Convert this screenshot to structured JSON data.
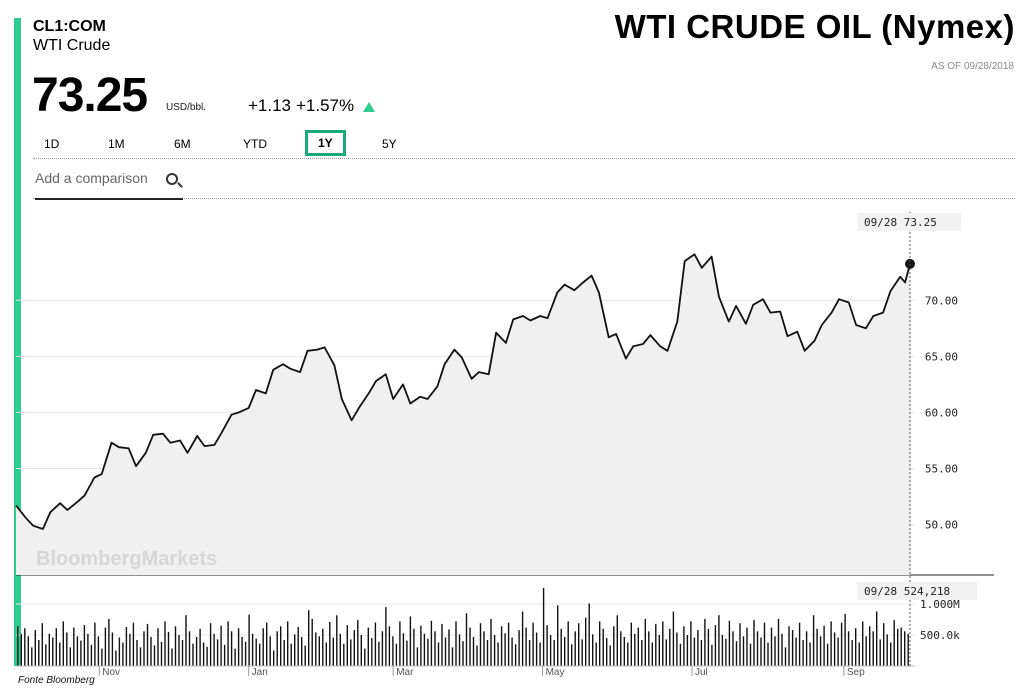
{
  "header": {
    "ticker": "CL1:COM",
    "name": "WTI Crude",
    "title": "WTI CRUDE OIL (Nymex)",
    "as_of": "AS OF 09/28/2018",
    "price": "73.25",
    "unit": "USD/bbl.",
    "change": "+1.13",
    "change_pct": "+1.57%"
  },
  "ranges": [
    {
      "label": "1D",
      "active": false
    },
    {
      "label": "1M",
      "active": false
    },
    {
      "label": "6M",
      "active": false
    },
    {
      "label": "YTD",
      "active": false
    },
    {
      "label": "1Y",
      "active": true
    },
    {
      "label": "5Y",
      "active": false
    }
  ],
  "compare": {
    "placeholder": "Add a comparison"
  },
  "watermark": "BloombergMarkets",
  "source": "Fonte Bloomberg",
  "colors": {
    "accent": "#2ecc8f",
    "active_border": "#1aa97b"
  },
  "chart_data": {
    "type": "line",
    "price_axis": {
      "ticks": [
        "70.00",
        "65.00",
        "60.00",
        "55.00",
        "50.00"
      ],
      "tick_values": [
        70,
        65,
        60,
        55,
        50
      ],
      "ylim": [
        45.5,
        78.5
      ]
    },
    "volume_axis": {
      "ticks": [
        "1.000M",
        "500.0k"
      ],
      "tick_values": [
        1000000,
        500000
      ],
      "ylim": [
        0,
        1420000
      ]
    },
    "x_labels": [
      "Nov",
      "Jan",
      "Mar",
      "May",
      "Jul",
      "Sep"
    ],
    "x_label_dates": [
      "2017-11-01",
      "2018-01-01",
      "2018-03-01",
      "2018-05-01",
      "2018-07-01",
      "2018-09-01"
    ],
    "x_range": [
      "2017-09-28",
      "2018-09-28"
    ],
    "last_point": {
      "date_label": "09/28",
      "price": "73.25",
      "volume": "524,218"
    },
    "price_series": [
      [
        "2017-09-28",
        51.7
      ],
      [
        "2017-10-02",
        50.6
      ],
      [
        "2017-10-05",
        49.9
      ],
      [
        "2017-10-09",
        49.6
      ],
      [
        "2017-10-12",
        51.1
      ],
      [
        "2017-10-16",
        51.9
      ],
      [
        "2017-10-19",
        51.3
      ],
      [
        "2017-10-23",
        52.0
      ],
      [
        "2017-10-26",
        52.6
      ],
      [
        "2017-10-30",
        54.2
      ],
      [
        "2017-11-02",
        54.5
      ],
      [
        "2017-11-06",
        57.3
      ],
      [
        "2017-11-09",
        56.9
      ],
      [
        "2017-11-13",
        56.8
      ],
      [
        "2017-11-16",
        55.2
      ],
      [
        "2017-11-20",
        56.4
      ],
      [
        "2017-11-23",
        58.0
      ],
      [
        "2017-11-27",
        58.1
      ],
      [
        "2017-11-30",
        57.3
      ],
      [
        "2017-12-04",
        57.5
      ],
      [
        "2017-12-07",
        56.4
      ],
      [
        "2017-12-11",
        57.9
      ],
      [
        "2017-12-14",
        57.0
      ],
      [
        "2017-12-18",
        57.1
      ],
      [
        "2017-12-21",
        58.2
      ],
      [
        "2017-12-25",
        59.8
      ],
      [
        "2017-12-28",
        60.0
      ],
      [
        "2018-01-01",
        60.4
      ],
      [
        "2018-01-04",
        62.0
      ],
      [
        "2018-01-08",
        61.7
      ],
      [
        "2018-01-11",
        63.8
      ],
      [
        "2018-01-15",
        64.3
      ],
      [
        "2018-01-18",
        63.9
      ],
      [
        "2018-01-22",
        63.6
      ],
      [
        "2018-01-25",
        65.5
      ],
      [
        "2018-01-29",
        65.6
      ],
      [
        "2018-02-01",
        65.8
      ],
      [
        "2018-02-05",
        64.2
      ],
      [
        "2018-02-08",
        61.2
      ],
      [
        "2018-02-12",
        59.3
      ],
      [
        "2018-02-15",
        60.4
      ],
      [
        "2018-02-19",
        61.7
      ],
      [
        "2018-02-22",
        62.8
      ],
      [
        "2018-02-26",
        63.4
      ],
      [
        "2018-03-01",
        61.2
      ],
      [
        "2018-03-05",
        62.5
      ],
      [
        "2018-03-08",
        60.8
      ],
      [
        "2018-03-12",
        61.4
      ],
      [
        "2018-03-15",
        61.2
      ],
      [
        "2018-03-19",
        62.3
      ],
      [
        "2018-03-22",
        64.3
      ],
      [
        "2018-03-26",
        65.6
      ],
      [
        "2018-03-29",
        64.9
      ],
      [
        "2018-04-02",
        63.0
      ],
      [
        "2018-04-05",
        63.6
      ],
      [
        "2018-04-09",
        63.4
      ],
      [
        "2018-04-12",
        67.1
      ],
      [
        "2018-04-16",
        66.2
      ],
      [
        "2018-04-19",
        68.3
      ],
      [
        "2018-04-23",
        68.6
      ],
      [
        "2018-04-26",
        68.2
      ],
      [
        "2018-04-30",
        68.6
      ],
      [
        "2018-05-03",
        68.4
      ],
      [
        "2018-05-07",
        70.7
      ],
      [
        "2018-05-10",
        71.4
      ],
      [
        "2018-05-14",
        70.9
      ],
      [
        "2018-05-17",
        71.5
      ],
      [
        "2018-05-21",
        72.2
      ],
      [
        "2018-05-24",
        70.7
      ],
      [
        "2018-05-28",
        66.7
      ],
      [
        "2018-05-31",
        67.0
      ],
      [
        "2018-06-04",
        64.8
      ],
      [
        "2018-06-07",
        65.9
      ],
      [
        "2018-06-11",
        66.1
      ],
      [
        "2018-06-14",
        66.9
      ],
      [
        "2018-06-18",
        65.9
      ],
      [
        "2018-06-21",
        65.5
      ],
      [
        "2018-06-25",
        68.1
      ],
      [
        "2018-06-28",
        73.5
      ],
      [
        "2018-07-02",
        74.1
      ],
      [
        "2018-07-05",
        72.9
      ],
      [
        "2018-07-09",
        73.9
      ],
      [
        "2018-07-12",
        70.3
      ],
      [
        "2018-07-16",
        68.1
      ],
      [
        "2018-07-19",
        69.5
      ],
      [
        "2018-07-23",
        67.9
      ],
      [
        "2018-07-26",
        69.6
      ],
      [
        "2018-07-30",
        70.1
      ],
      [
        "2018-08-02",
        68.9
      ],
      [
        "2018-08-06",
        69.0
      ],
      [
        "2018-08-09",
        66.8
      ],
      [
        "2018-08-13",
        67.2
      ],
      [
        "2018-08-16",
        65.5
      ],
      [
        "2018-08-20",
        66.4
      ],
      [
        "2018-08-23",
        67.8
      ],
      [
        "2018-08-27",
        68.9
      ],
      [
        "2018-08-30",
        70.1
      ],
      [
        "2018-09-03",
        69.8
      ],
      [
        "2018-09-06",
        67.8
      ],
      [
        "2018-09-10",
        67.5
      ],
      [
        "2018-09-13",
        68.6
      ],
      [
        "2018-09-17",
        68.9
      ],
      [
        "2018-09-20",
        70.8
      ],
      [
        "2018-09-24",
        72.1
      ],
      [
        "2018-09-26",
        71.6
      ],
      [
        "2018-09-28",
        73.25
      ]
    ],
    "volume_series": [
      640000,
      520000,
      610000,
      480000,
      300000,
      580000,
      420000,
      690000,
      350000,
      520000,
      460000,
      610000,
      380000,
      720000,
      540000,
      300000,
      620000,
      480000,
      410000,
      660000,
      520000,
      340000,
      700000,
      480000,
      280000,
      620000,
      760000,
      540000,
      250000,
      460000,
      380000,
      630000,
      520000,
      700000,
      420000,
      300000,
      560000,
      680000,
      470000,
      330000,
      610000,
      390000,
      720000,
      550000,
      280000,
      640000,
      500000,
      420000,
      820000,
      560000,
      360000,
      470000,
      600000,
      380000,
      310000,
      690000,
      520000,
      430000,
      650000,
      340000,
      720000,
      560000,
      280000,
      610000,
      470000,
      390000,
      830000,
      520000,
      440000,
      360000,
      610000,
      700000,
      480000,
      250000,
      560000,
      640000,
      420000,
      720000,
      360000,
      510000,
      630000,
      470000,
      330000,
      900000,
      760000,
      540000,
      480000,
      600000,
      380000,
      710000,
      460000,
      820000,
      520000,
      360000,
      660000,
      430000,
      580000,
      740000,
      500000,
      280000,
      620000,
      450000,
      700000,
      390000,
      560000,
      950000,
      640000,
      480000,
      360000,
      720000,
      530000,
      410000,
      800000,
      600000,
      300000,
      650000,
      520000,
      440000,
      730000,
      560000,
      380000,
      680000,
      460000,
      590000,
      300000,
      720000,
      510000,
      400000,
      850000,
      620000,
      470000,
      330000,
      690000,
      560000,
      420000,
      760000,
      500000,
      380000,
      640000,
      530000,
      700000,
      460000,
      350000,
      580000,
      880000,
      620000,
      420000,
      700000,
      540000,
      380000,
      1260000,
      660000,
      500000,
      420000,
      980000,
      600000,
      470000,
      720000,
      350000,
      560000,
      690000,
      430000,
      780000,
      1010000,
      510000,
      380000,
      720000,
      600000,
      450000,
      330000,
      640000,
      820000,
      560000,
      470000,
      380000,
      700000,
      520000,
      620000,
      420000,
      760000,
      560000,
      380000,
      680000,
      500000,
      720000,
      430000,
      600000,
      880000,
      540000,
      360000,
      640000,
      500000,
      720000,
      460000,
      580000,
      420000,
      760000,
      600000,
      340000,
      660000,
      820000,
      500000,
      440000,
      730000,
      560000,
      400000,
      690000,
      480000,
      620000,
      360000,
      740000,
      560000,
      460000,
      700000,
      380000,
      620000,
      480000,
      760000,
      520000,
      300000,
      640000,
      580000,
      460000,
      700000,
      420000,
      560000,
      380000,
      820000,
      600000,
      480000,
      650000,
      360000,
      720000,
      540000,
      460000,
      700000,
      840000,
      560000,
      420000,
      610000,
      380000,
      720000,
      480000,
      640000,
      560000,
      880000,
      430000,
      690000,
      510000,
      380000,
      740000,
      600000,
      620000,
      560000,
      520000
    ]
  }
}
